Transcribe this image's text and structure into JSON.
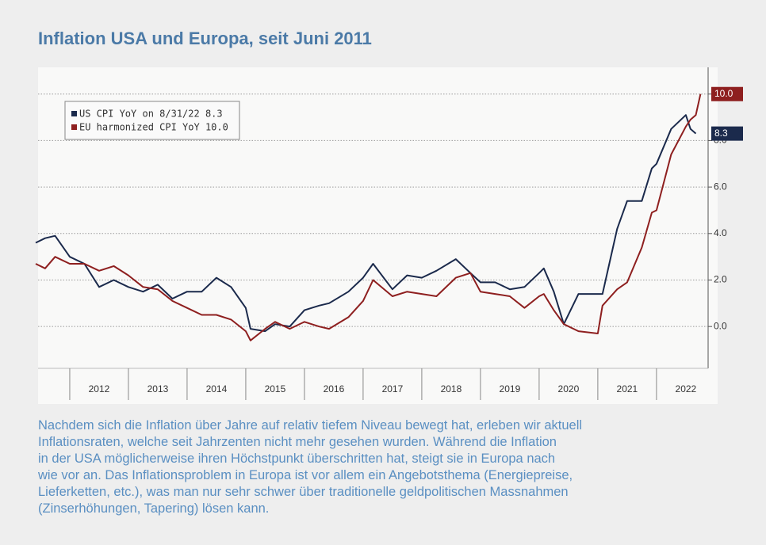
{
  "chart_data": {
    "type": "line",
    "title": "Inflation USA und Europa, seit Juni 2011",
    "x": [
      2011.42,
      2011.58,
      2011.75,
      2012.0,
      2012.25,
      2012.5,
      2012.75,
      2013.0,
      2013.25,
      2013.5,
      2013.75,
      2014.0,
      2014.25,
      2014.5,
      2014.75,
      2015.0,
      2015.08,
      2015.33,
      2015.5,
      2015.75,
      2016.0,
      2016.25,
      2016.42,
      2016.75,
      2017.0,
      2017.17,
      2017.5,
      2017.75,
      2018.0,
      2018.25,
      2018.58,
      2018.83,
      2019.0,
      2019.25,
      2019.5,
      2019.75,
      2020.0,
      2020.08,
      2020.25,
      2020.42,
      2020.67,
      2021.0,
      2021.08,
      2021.33,
      2021.5,
      2021.75,
      2021.92,
      2022.0,
      2022.25,
      2022.5,
      2022.58,
      2022.67,
      2022.75
    ],
    "series": [
      {
        "name": "US CPI YoY on 8/31/22 8.3",
        "color": "#1b2a4c",
        "values": [
          3.6,
          3.8,
          3.9,
          3.0,
          2.7,
          1.7,
          2.0,
          1.7,
          1.5,
          1.8,
          1.2,
          1.5,
          1.5,
          2.1,
          1.7,
          0.8,
          -0.1,
          -0.2,
          0.1,
          0.0,
          0.7,
          0.9,
          1.0,
          1.5,
          2.1,
          2.7,
          1.6,
          2.2,
          2.1,
          2.4,
          2.9,
          2.3,
          1.9,
          1.9,
          1.6,
          1.7,
          2.3,
          2.5,
          1.5,
          0.1,
          1.4,
          1.4,
          1.4,
          4.2,
          5.4,
          5.4,
          6.8,
          7.0,
          8.5,
          9.1,
          8.5,
          8.3,
          null
        ],
        "end_label": {
          "value": 8.3,
          "label": "8.3"
        }
      },
      {
        "name": "EU harmonized CPI YoY 10.0",
        "color": "#8e1f1f",
        "values": [
          2.7,
          2.5,
          3.0,
          2.7,
          2.7,
          2.4,
          2.6,
          2.2,
          1.7,
          1.6,
          1.1,
          0.8,
          0.5,
          0.5,
          0.3,
          -0.2,
          -0.6,
          -0.1,
          0.2,
          -0.1,
          0.2,
          0.0,
          -0.1,
          0.4,
          1.1,
          2.0,
          1.3,
          1.5,
          1.4,
          1.3,
          2.1,
          2.3,
          1.5,
          1.4,
          1.3,
          0.8,
          1.3,
          1.4,
          0.7,
          0.1,
          -0.2,
          -0.3,
          0.9,
          1.6,
          1.9,
          3.4,
          4.9,
          5.0,
          7.4,
          8.6,
          8.9,
          9.1,
          10.0
        ],
        "end_label": {
          "value": 10.0,
          "label": "10.0"
        }
      }
    ],
    "xlim": [
      2011.46,
      2022.88
    ],
    "xticks": [
      2012,
      2013,
      2014,
      2015,
      2016,
      2017,
      2018,
      2019,
      2020,
      2021,
      2022
    ],
    "ylim": [
      -1.8,
      11.15
    ],
    "yticks": [
      {
        "value": 0,
        "label": "0.0"
      },
      {
        "value": 2,
        "label": "2.0"
      },
      {
        "value": 4,
        "label": "4.0"
      },
      {
        "value": 6,
        "label": "6.0"
      },
      {
        "value": 8,
        "label": "8.0"
      },
      {
        "value": 10,
        "label": "10.0"
      }
    ],
    "grid": true,
    "legend": "upper left",
    "caption": [
      "Nachdem sich die Inflation über Jahre auf relativ tiefem Niveau bewegt hat, erleben wir aktuell",
      "Inflationsraten, welche seit Jahrzenten nicht mehr gesehen wurden. Während die Inflation",
      "in der USA möglicherweise ihren Höchstpunkt überschritten hat, steigt sie in Europa nach",
      "wie vor an. Das Inflationsproblem in Europa ist vor allem ein Angebotsthema (Energiepreise,",
      "Lieferketten, etc.), was man nur sehr schwer über traditionelle geldpolitischen Massnahmen",
      "(Zinserhöhungen, Tapering) lösen kann."
    ]
  }
}
